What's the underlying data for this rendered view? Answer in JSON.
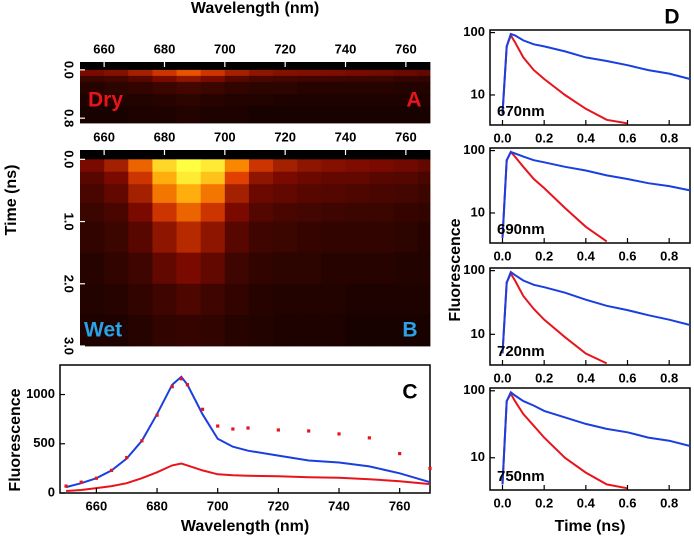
{
  "chart_data": [
    {
      "type": "heatmap",
      "xlabel": "Wavelength (nm)",
      "annotation": "Dry",
      "annotation_color": "#e8141c",
      "panel_label": "A",
      "panel_label_color": "#e8141c",
      "xlim": [
        652,
        768
      ],
      "xticks": [
        660,
        680,
        700,
        720,
        740,
        760
      ],
      "ylim": [
        -0.13,
        0.88
      ],
      "y_inverted": true,
      "yticks": [
        {
          "value": 0,
          "label": "0.0"
        },
        {
          "value": 0.8,
          "label": "0.8"
        }
      ],
      "colormap": [
        "#000000",
        "#7a0a00",
        "#e04000",
        "#ff9a00",
        "#ffff40"
      ],
      "x_edges": [
        652,
        660,
        668,
        676,
        684,
        692,
        700,
        708,
        716,
        724,
        732,
        740,
        748,
        756,
        764,
        768
      ],
      "y_edges": [
        -0.13,
        0.0,
        0.1,
        0.2,
        0.4,
        0.6,
        0.88
      ],
      "z": [
        [
          0,
          0,
          0,
          0,
          0,
          0,
          0,
          0,
          0,
          0,
          0,
          0,
          0,
          0,
          0
        ],
        [
          0.25,
          0.28,
          0.35,
          0.45,
          0.55,
          0.45,
          0.35,
          0.3,
          0.28,
          0.27,
          0.26,
          0.25,
          0.24,
          0.22,
          0.2
        ],
        [
          0.12,
          0.14,
          0.18,
          0.25,
          0.3,
          0.25,
          0.18,
          0.15,
          0.14,
          0.13,
          0.13,
          0.12,
          0.12,
          0.11,
          0.1
        ],
        [
          0.08,
          0.09,
          0.1,
          0.12,
          0.14,
          0.12,
          0.1,
          0.09,
          0.09,
          0.08,
          0.08,
          0.08,
          0.08,
          0.07,
          0.07
        ],
        [
          0.06,
          0.07,
          0.07,
          0.08,
          0.09,
          0.08,
          0.07,
          0.07,
          0.06,
          0.06,
          0.06,
          0.06,
          0.06,
          0.06,
          0.06
        ],
        [
          0.05,
          0.05,
          0.06,
          0.06,
          0.07,
          0.06,
          0.06,
          0.05,
          0.05,
          0.05,
          0.05,
          0.05,
          0.05,
          0.05,
          0.05
        ]
      ]
    },
    {
      "type": "heatmap",
      "ylabel": "Time (ns)",
      "annotation": "Wet",
      "annotation_color": "#29a3e6",
      "panel_label": "B",
      "panel_label_color": "#29a3e6",
      "xlim": [
        652,
        768
      ],
      "xticks": [
        660,
        680,
        700,
        720,
        740,
        760
      ],
      "ylim": [
        -0.15,
        3.0
      ],
      "y_inverted": true,
      "yticks": [
        {
          "value": 0,
          "label": "0.0"
        },
        {
          "value": 1,
          "label": "1.0"
        },
        {
          "value": 2,
          "label": "2.0"
        },
        {
          "value": 3,
          "label": "3.0"
        }
      ],
      "colormap": [
        "#000000",
        "#7a0a00",
        "#e04000",
        "#ff9a00",
        "#ffff40"
      ],
      "x_edges": [
        652,
        660,
        668,
        676,
        684,
        692,
        700,
        708,
        716,
        724,
        732,
        740,
        748,
        756,
        764,
        768
      ],
      "y_edges": [
        -0.15,
        0.0,
        0.2,
        0.4,
        0.7,
        1.0,
        1.5,
        2.0,
        2.5,
        3.0
      ],
      "z": [
        [
          0,
          0,
          0,
          0,
          0,
          0,
          0,
          0,
          0,
          0,
          0,
          0,
          0,
          0,
          0
        ],
        [
          0.25,
          0.35,
          0.6,
          0.9,
          1.0,
          0.95,
          0.7,
          0.45,
          0.35,
          0.3,
          0.28,
          0.26,
          0.25,
          0.23,
          0.2
        ],
        [
          0.18,
          0.25,
          0.45,
          0.8,
          0.95,
          0.85,
          0.5,
          0.3,
          0.25,
          0.22,
          0.2,
          0.2,
          0.18,
          0.17,
          0.15
        ],
        [
          0.15,
          0.2,
          0.35,
          0.65,
          0.8,
          0.65,
          0.35,
          0.22,
          0.2,
          0.18,
          0.17,
          0.16,
          0.15,
          0.14,
          0.12
        ],
        [
          0.12,
          0.15,
          0.25,
          0.45,
          0.6,
          0.45,
          0.25,
          0.17,
          0.15,
          0.14,
          0.13,
          0.12,
          0.12,
          0.11,
          0.1
        ],
        [
          0.1,
          0.12,
          0.18,
          0.3,
          0.4,
          0.3,
          0.18,
          0.13,
          0.12,
          0.11,
          0.1,
          0.1,
          0.1,
          0.09,
          0.08
        ],
        [
          0.08,
          0.1,
          0.13,
          0.2,
          0.25,
          0.2,
          0.13,
          0.1,
          0.09,
          0.09,
          0.08,
          0.08,
          0.08,
          0.07,
          0.07
        ],
        [
          0.07,
          0.08,
          0.1,
          0.13,
          0.16,
          0.13,
          0.1,
          0.08,
          0.07,
          0.07,
          0.07,
          0.06,
          0.06,
          0.06,
          0.06
        ],
        [
          0.06,
          0.06,
          0.08,
          0.1,
          0.11,
          0.1,
          0.08,
          0.07,
          0.06,
          0.06,
          0.06,
          0.05,
          0.05,
          0.05,
          0.05
        ]
      ]
    },
    {
      "type": "line",
      "xlabel": "Wavelength (nm)",
      "ylabel": "Fluorescence",
      "panel_label": "C",
      "xlim": [
        648,
        770
      ],
      "xticks": [
        660,
        680,
        700,
        720,
        740,
        760
      ],
      "ylim": [
        0,
        1300
      ],
      "yticks": [
        0,
        500,
        1000
      ],
      "x": [
        650,
        655,
        660,
        665,
        670,
        675,
        680,
        685,
        688,
        690,
        695,
        700,
        705,
        710,
        720,
        730,
        740,
        750,
        760,
        770
      ],
      "series": [
        {
          "color": "#1a3fe0",
          "style": "solid",
          "values": [
            60,
            100,
            150,
            230,
            350,
            530,
            800,
            1100,
            1180,
            1100,
            800,
            550,
            470,
            430,
            380,
            330,
            310,
            270,
            200,
            110
          ]
        },
        {
          "color": "#e8141c",
          "style": "solid",
          "values": [
            20,
            30,
            50,
            70,
            100,
            150,
            210,
            280,
            300,
            280,
            230,
            190,
            180,
            175,
            170,
            160,
            155,
            140,
            120,
            90
          ]
        },
        {
          "color": "#e8141c",
          "style": "dots",
          "values": [
            70,
            110,
            150,
            230,
            360,
            530,
            790,
            1080,
            1160,
            1100,
            850,
            680,
            650,
            660,
            640,
            630,
            600,
            560,
            400,
            250
          ]
        }
      ]
    },
    {
      "type": "line",
      "log_y": true,
      "panel_label": "D",
      "annotation": "670nm",
      "xlim": [
        -0.06,
        0.9
      ],
      "xticks": [
        {
          "value": 0,
          "label": "0.0"
        },
        0.2,
        0.4,
        0.6,
        0.8
      ],
      "ylim": [
        3.3,
        110
      ],
      "yticks": [
        10,
        100
      ],
      "x": [
        0.0,
        0.02,
        0.04,
        0.06,
        0.1,
        0.15,
        0.2,
        0.3,
        0.4,
        0.5,
        0.6,
        0.7,
        0.8,
        0.9
      ],
      "series": [
        {
          "color": "#e8141c",
          "style": "solid",
          "values": [
            5,
            60,
            90,
            70,
            40,
            25,
            18,
            10,
            6,
            4,
            3.5,
            null,
            null,
            null
          ]
        },
        {
          "color": "#1a3fe0",
          "style": "solid",
          "values": [
            5,
            60,
            95,
            90,
            75,
            65,
            60,
            50,
            40,
            35,
            30,
            25,
            22,
            18
          ]
        }
      ]
    },
    {
      "type": "line",
      "log_y": true,
      "annotation": "690nm",
      "xlim": [
        -0.06,
        0.9
      ],
      "xticks": [
        {
          "value": 0,
          "label": "0.0"
        },
        0.2,
        0.4,
        0.6,
        0.8
      ],
      "ylim": [
        3.3,
        110
      ],
      "yticks": [
        10,
        100
      ],
      "x": [
        0.0,
        0.02,
        0.04,
        0.06,
        0.1,
        0.15,
        0.2,
        0.3,
        0.4,
        0.5,
        0.6,
        0.7,
        0.8,
        0.9
      ],
      "series": [
        {
          "color": "#e8141c",
          "style": "solid",
          "values": [
            4,
            70,
            95,
            80,
            55,
            35,
            25,
            12,
            6,
            3.5,
            null,
            null,
            null,
            null
          ]
        },
        {
          "color": "#1a3fe0",
          "style": "solid",
          "values": [
            4,
            70,
            95,
            90,
            80,
            70,
            65,
            55,
            48,
            40,
            35,
            30,
            27,
            23
          ]
        }
      ]
    },
    {
      "type": "line",
      "log_y": true,
      "annotation": "720nm",
      "ylabel": "Fluorescence",
      "xlim": [
        -0.06,
        0.9
      ],
      "xticks": [
        {
          "value": 0,
          "label": "0.0"
        },
        0.2,
        0.4,
        0.6,
        0.8
      ],
      "ylim": [
        3.3,
        110
      ],
      "yticks": [
        10,
        100
      ],
      "x": [
        0.0,
        0.02,
        0.04,
        0.06,
        0.1,
        0.15,
        0.2,
        0.3,
        0.4,
        0.5,
        0.6,
        0.7,
        0.8,
        0.9
      ],
      "series": [
        {
          "color": "#e8141c",
          "style": "solid",
          "values": [
            5,
            65,
            90,
            70,
            40,
            25,
            17,
            9,
            5,
            3.5,
            null,
            null,
            null,
            null
          ]
        },
        {
          "color": "#1a3fe0",
          "style": "solid",
          "values": [
            5,
            65,
            95,
            85,
            70,
            60,
            55,
            45,
            35,
            28,
            24,
            20,
            17,
            14
          ]
        }
      ]
    },
    {
      "type": "line",
      "log_y": true,
      "annotation": "750nm",
      "xlabel": "Time (ns)",
      "xlim": [
        -0.06,
        0.9
      ],
      "xticks": [
        {
          "value": 0,
          "label": "0.0"
        },
        0.2,
        0.4,
        0.6,
        0.8
      ],
      "ylim": [
        3.3,
        110
      ],
      "yticks": [
        10,
        100
      ],
      "x": [
        0.0,
        0.02,
        0.04,
        0.06,
        0.1,
        0.15,
        0.2,
        0.3,
        0.4,
        0.5,
        0.6,
        0.7,
        0.8,
        0.9
      ],
      "series": [
        {
          "color": "#e8141c",
          "style": "solid",
          "values": [
            4,
            70,
            90,
            70,
            45,
            30,
            20,
            10,
            6,
            4,
            3.5,
            null,
            null,
            null
          ]
        },
        {
          "color": "#1a3fe0",
          "style": "solid",
          "values": [
            4,
            70,
            95,
            85,
            70,
            60,
            50,
            40,
            32,
            27,
            24,
            20,
            18,
            15
          ]
        }
      ]
    }
  ]
}
